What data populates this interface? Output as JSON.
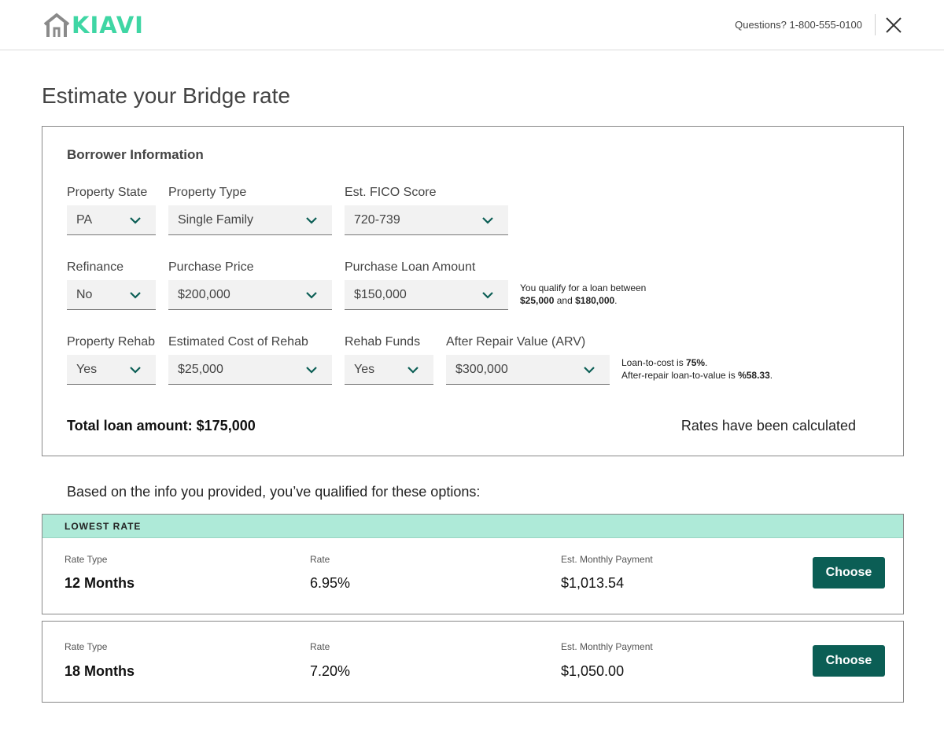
{
  "app": {
    "logo_text": "KIAVI",
    "questions": "Questions? 1-800-555-0100"
  },
  "page": {
    "title": "Estimate your Bridge rate"
  },
  "borrower": {
    "section_title": "Borrower Information",
    "fields": [
      {
        "label": "Property State",
        "value": "PA"
      },
      {
        "label": "Property Type",
        "value": "Single Family"
      },
      {
        "label": "Est. FICO Score",
        "value": "720-739"
      },
      {
        "label": "Refinance",
        "value": "No"
      },
      {
        "label": "Purchase Price",
        "value": "$200,000"
      },
      {
        "label": "Purchase Loan Amount",
        "value": "$150,000"
      },
      {
        "label": "Property Rehab",
        "value": "Yes"
      },
      {
        "label": "Estimated Cost of Rehab",
        "value": "$25,000"
      },
      {
        "label": "Rehab Funds",
        "value": "Yes"
      },
      {
        "label": "After Repair Value (ARV)",
        "value": "$300,000"
      }
    ],
    "qualify_note": {
      "line1": "You qualify for a loan between",
      "min": "$25,000",
      "and": "and",
      "max": "$180,000",
      "end": "."
    },
    "ltc_note": {
      "ltc_prefix": "Loan-to-cost is",
      "ltc_value": "75%",
      "ltc_end": ".",
      "arv_prefix": "After-repair loan-to-value is",
      "arv_value": "%58.33",
      "arv_end": "."
    },
    "total": "Total loan amount: $175,000",
    "status": "Rates have been calculated"
  },
  "results": {
    "intro": "Based on the info you provided, you’ve qualified for these options:",
    "col_rate_type": "Rate Type",
    "col_rate": "Rate",
    "col_payment": "Est. Monthly Payment",
    "choose_label": "Choose",
    "options": [
      {
        "badge": "LOWEST RATE",
        "rate_type": "12 Months",
        "rate": "6.95%",
        "payment": "$1,013.54"
      },
      {
        "rate_type": "18 Months",
        "rate": "7.20%",
        "payment": "$1,050.00"
      }
    ]
  },
  "colors": {
    "brand_green": "#3fd6a4",
    "brand_gray": "#8a8a8a",
    "button": "#0b5e55",
    "badge_bg": "#aeead8",
    "chevron": "#0b5e55"
  },
  "icons": {
    "logo_mark": "house-icon",
    "close": "close-icon",
    "dropdown": "chevron-down-icon"
  }
}
